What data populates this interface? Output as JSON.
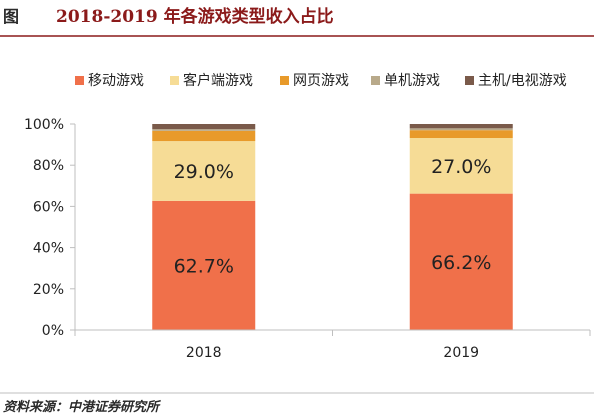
{
  "figure": {
    "tag": "图",
    "title": "2018-2019 年各游戏类型收入占比",
    "source": "资料来源：中港证券研究所"
  },
  "colors": {
    "title_rule": "#8b1a1a",
    "axis": "#bfbfbf"
  },
  "chart_data": {
    "type": "bar",
    "stacked": true,
    "categories": [
      "2018",
      "2019"
    ],
    "series": [
      {
        "name": "移动游戏",
        "color": "#f0704a",
        "values": [
          62.7,
          66.2
        ],
        "labels": [
          "62.7%",
          "66.2%"
        ]
      },
      {
        "name": "客户端游戏",
        "color": "#f6dc96",
        "values": [
          29.0,
          27.0
        ],
        "labels": [
          "29.0%",
          "27.0%"
        ]
      },
      {
        "name": "网页游戏",
        "color": "#e89a2a",
        "values": [
          5.0,
          3.8
        ],
        "labels": [
          "",
          ""
        ]
      },
      {
        "name": "单机游戏",
        "color": "#b8a98a",
        "values": [
          0.8,
          0.9
        ],
        "labels": [
          "",
          ""
        ]
      },
      {
        "name": "主机/电视游戏",
        "color": "#7a5a4a",
        "values": [
          2.5,
          2.1
        ],
        "labels": [
          "",
          ""
        ]
      }
    ],
    "ylim": [
      0,
      100
    ],
    "yticks": [
      "0%",
      "20%",
      "40%",
      "60%",
      "80%",
      "100%"
    ],
    "legend_position": "top",
    "grid": false
  }
}
